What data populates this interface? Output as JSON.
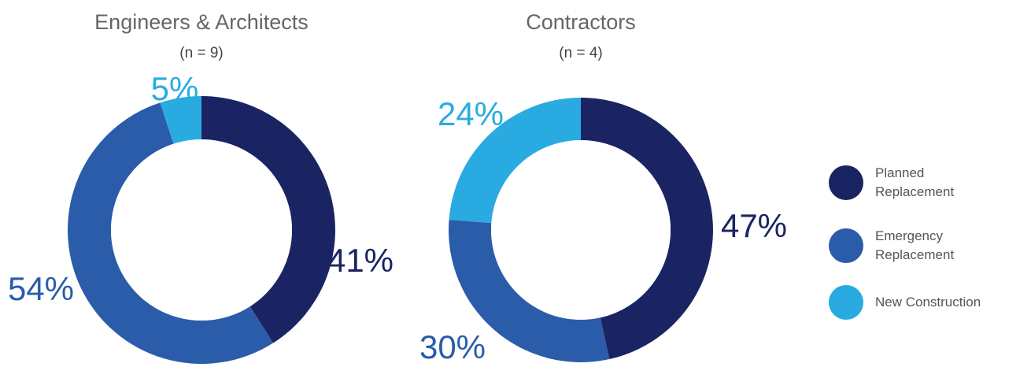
{
  "chart_data": [
    {
      "type": "donut",
      "title": "Engineers & Architects",
      "subtitle": "(n = 9)",
      "values": [
        41,
        54,
        5
      ],
      "value_labels": [
        "41%",
        "54%",
        "5%"
      ]
    },
    {
      "type": "donut",
      "title": "Contractors",
      "subtitle": "(n = 4)",
      "values": [
        47,
        30,
        24
      ],
      "value_labels": [
        "47%",
        "30%",
        "24%"
      ]
    }
  ],
  "legend": {
    "labels": [
      "Planned Replacement",
      "Emergency Replacement",
      "New Construction"
    ],
    "colors": [
      "#1b2463",
      "#2a5caa",
      "#29abe2"
    ]
  }
}
